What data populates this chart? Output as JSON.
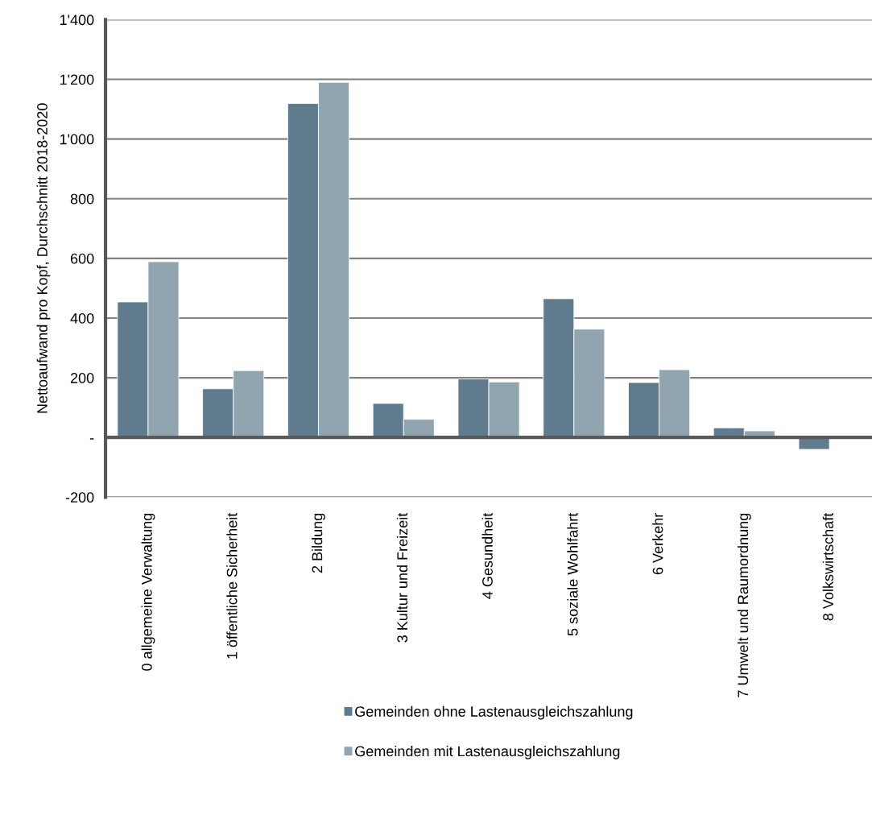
{
  "chart_data": {
    "type": "bar",
    "ylabel": "Nettoaufwand pro Kopf, Durchschnitt 2018-2020",
    "categories": [
      "0 allgemeine Verwaltung",
      "1 öffentliche Sicherheit",
      "2 Bildung",
      "3 Kultur und Freizeit",
      "4 Gesundheit",
      "5 soziale Wohlfahrt",
      "6 Verkehr",
      "7 Umwelt und Raumordnung",
      "8 Volkswirtschaft"
    ],
    "series": [
      {
        "name": "Gemeinden ohne Lastenausgleichszahlung",
        "color": "#5f7b8d",
        "values": [
          454,
          163,
          1119,
          114,
          196,
          465,
          184,
          32,
          -40
        ]
      },
      {
        "name": "Gemeinden mit Lastenausgleichszahlung",
        "color": "#91a5b1",
        "values": [
          589,
          224,
          1190,
          61,
          186,
          363,
          227,
          22,
          null
        ]
      }
    ],
    "ylim": [
      -200,
      1400
    ],
    "yticks": [
      -200,
      {
        "value": 0,
        "label": "-"
      },
      200,
      400,
      600,
      800,
      {
        "value": 1000,
        "label": "1'000"
      },
      {
        "value": 1200,
        "label": "1'200"
      },
      {
        "value": 1400,
        "label": "1'400"
      }
    ],
    "grid": "y",
    "legend": "bottom"
  }
}
